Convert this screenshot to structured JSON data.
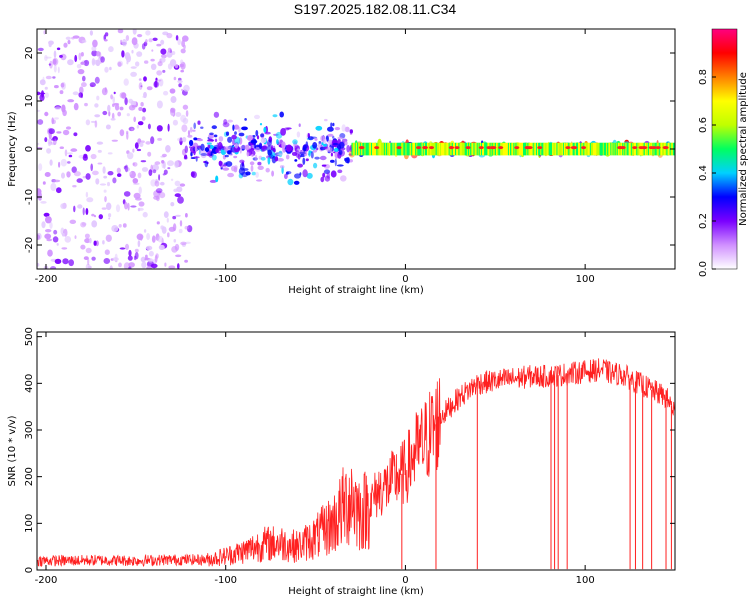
{
  "title": "S197.2025.182.08.11.C34",
  "chart_data": [
    {
      "type": "heatmap",
      "xlabel": "Height of straight line (km)",
      "ylabel": "Frequency (Hz)",
      "xlim": [
        -205,
        150
      ],
      "ylim": [
        -25,
        25
      ],
      "xticks": [
        -200,
        -100,
        0,
        100
      ],
      "yticks": [
        -20,
        -10,
        0,
        10,
        20
      ],
      "colorbar": {
        "label": "Normalized spectral amplitude",
        "range": [
          0.0,
          1.0
        ],
        "ticks": [
          "0.0",
          "0.2",
          "0.4",
          "0.6",
          "0.8"
        ],
        "colors": [
          "#ffffff",
          "#d090ff",
          "#7a00ff",
          "#0000ff",
          "#00d0ff",
          "#00ff60",
          "#c0ff00",
          "#ffff00",
          "#ff8000",
          "#ff0000",
          "#ff0080"
        ]
      },
      "description_bands": [
        {
          "x_range": [
            -205,
            -120
          ],
          "freq_spread": 25,
          "typical_amplitude": 0.1
        },
        {
          "x_range": [
            -120,
            -30
          ],
          "freq_spread": 8,
          "typical_amplitude": 0.2
        },
        {
          "x_range": [
            -30,
            150
          ],
          "freq_spread": 1.5,
          "typical_amplitude": 0.5
        }
      ]
    },
    {
      "type": "line",
      "xlabel": "Height of straight line (km)",
      "ylabel": "SNR (10 * v/v)",
      "xlim": [
        -205,
        150
      ],
      "ylim": [
        0,
        510
      ],
      "xticks": [
        -200,
        -100,
        0,
        100
      ],
      "yticks": [
        0,
        100,
        200,
        300,
        400,
        500
      ],
      "color": "#ff2020",
      "series": [
        {
          "x": [
            -205,
            -190,
            -170,
            -150,
            -130,
            -110,
            -100,
            -90,
            -80,
            -70,
            -60,
            -50,
            -40,
            -30,
            -25,
            -20,
            -15,
            -10,
            -5,
            0,
            5,
            10,
            15,
            20,
            25,
            30,
            40,
            50,
            60,
            70,
            80,
            90,
            100,
            110,
            115,
            120,
            125,
            130,
            135,
            140,
            145,
            150
          ],
          "values": [
            20,
            20,
            21,
            20,
            22,
            22,
            30,
            40,
            55,
            58,
            50,
            70,
            100,
            160,
            120,
            140,
            170,
            180,
            200,
            210,
            250,
            270,
            300,
            330,
            350,
            370,
            400,
            405,
            410,
            415,
            415,
            420,
            425,
            430,
            420,
            420,
            410,
            400,
            390,
            380,
            370,
            340
          ]
        }
      ],
      "dropouts_x": [
        -2,
        17,
        40,
        81,
        83,
        85,
        90,
        125,
        128,
        132,
        137,
        145,
        148
      ]
    }
  ]
}
